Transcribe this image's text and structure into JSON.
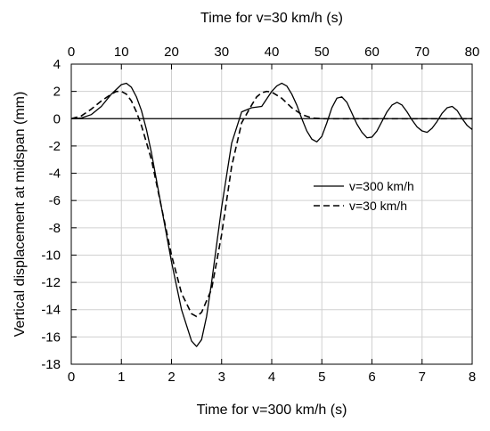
{
  "chart_data": {
    "type": "line",
    "title": "",
    "xlabel": "Time for v=300 km/h (s)",
    "x2label": "Time for v=30 km/h (s)",
    "ylabel": "Vertical displacement at midspan (mm)",
    "xlim": [
      0,
      8
    ],
    "x2lim": [
      0,
      80
    ],
    "ylim": [
      -18,
      4
    ],
    "xticks": [
      "0",
      "1",
      "2",
      "3",
      "4",
      "5",
      "6",
      "7",
      "8"
    ],
    "x2ticks": [
      "0",
      "10",
      "20",
      "30",
      "40",
      "50",
      "60",
      "70",
      "80"
    ],
    "yticks": [
      "4",
      "2",
      "0",
      "-2",
      "-4",
      "-6",
      "-8",
      "-10",
      "-12",
      "-14",
      "-16",
      "-18"
    ],
    "grid": true,
    "legend_position": "center-right",
    "series": [
      {
        "name": "v=300 km/h",
        "style": "solid",
        "color": "#000000",
        "x": [
          0,
          0.2,
          0.4,
          0.6,
          0.8,
          1.0,
          1.1,
          1.2,
          1.3,
          1.4,
          1.5,
          1.6,
          1.8,
          2.0,
          2.2,
          2.4,
          2.5,
          2.6,
          2.7,
          2.8,
          3.0,
          3.2,
          3.4,
          3.6,
          3.8,
          4.0,
          4.1,
          4.2,
          4.3,
          4.4,
          4.5,
          4.6,
          4.7,
          4.8,
          4.9,
          5.0,
          5.1,
          5.2,
          5.3,
          5.4,
          5.5,
          5.6,
          5.7,
          5.8,
          5.9,
          6.0,
          6.1,
          6.2,
          6.3,
          6.4,
          6.5,
          6.6,
          6.7,
          6.8,
          6.9,
          7.0,
          7.1,
          7.2,
          7.3,
          7.4,
          7.5,
          7.6,
          7.7,
          7.8,
          7.9,
          8.0
        ],
        "y": [
          0,
          0.05,
          0.3,
          0.9,
          1.8,
          2.5,
          2.6,
          2.3,
          1.6,
          0.6,
          -0.8,
          -2.5,
          -6.5,
          -10.5,
          -14.0,
          -16.3,
          -16.7,
          -16.2,
          -14.5,
          -12.0,
          -6.5,
          -1.8,
          0.5,
          0.8,
          0.9,
          2.0,
          2.4,
          2.6,
          2.4,
          1.8,
          1.0,
          0.0,
          -0.9,
          -1.5,
          -1.7,
          -1.3,
          -0.3,
          0.8,
          1.5,
          1.6,
          1.2,
          0.4,
          -0.4,
          -1.0,
          -1.4,
          -1.35,
          -0.9,
          -0.2,
          0.5,
          1.0,
          1.2,
          1.0,
          0.5,
          -0.1,
          -0.6,
          -0.9,
          -1.0,
          -0.7,
          -0.2,
          0.4,
          0.8,
          0.9,
          0.6,
          0.0,
          -0.5,
          -0.8
        ]
      },
      {
        "name": "v=30 km/h",
        "style": "dashed",
        "color": "#000000",
        "x": [
          0,
          0.2,
          0.4,
          0.6,
          0.8,
          0.9,
          1.0,
          1.1,
          1.2,
          1.3,
          1.4,
          1.6,
          1.8,
          2.0,
          2.2,
          2.4,
          2.5,
          2.6,
          2.8,
          3.0,
          3.2,
          3.4,
          3.6,
          3.7,
          3.8,
          3.9,
          4.0,
          4.2,
          4.4,
          4.6,
          4.8,
          5.0,
          5.5,
          6.0,
          7.0,
          8.0
        ],
        "y": [
          0,
          0.2,
          0.7,
          1.3,
          1.8,
          2.0,
          2.0,
          1.8,
          1.3,
          0.5,
          -0.5,
          -3.0,
          -6.5,
          -10.0,
          -12.8,
          -14.3,
          -14.5,
          -14.2,
          -12.5,
          -8.5,
          -3.5,
          -0.3,
          1.0,
          1.6,
          1.9,
          2.0,
          1.95,
          1.5,
          0.8,
          0.3,
          0.05,
          0,
          0,
          0,
          0,
          0
        ]
      }
    ]
  }
}
